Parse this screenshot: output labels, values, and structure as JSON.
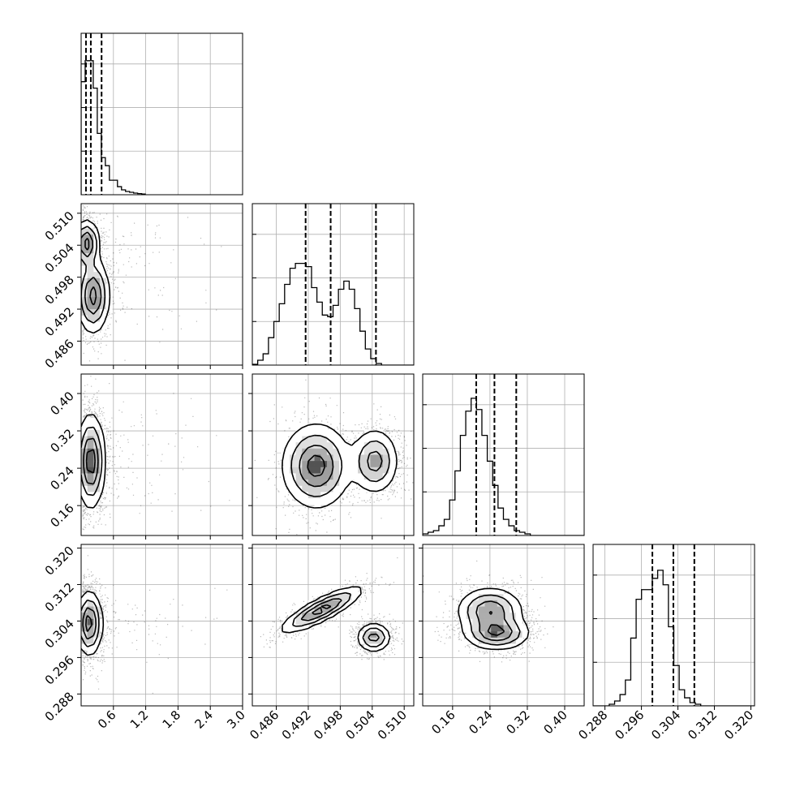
{
  "chart_data": {
    "type": "corner",
    "ndim": 4,
    "params": [
      {
        "range": [
          0.0,
          3.0
        ],
        "ticks": [
          0.6,
          1.2,
          1.8,
          2.4,
          3.0
        ],
        "tick_labels": [
          "0.6",
          "1.2",
          "1.8",
          "2.4",
          "3.0"
        ],
        "quantiles": [
          0.09,
          0.18,
          0.38
        ]
      },
      {
        "range": [
          0.4815,
          0.5118
        ],
        "ticks": [
          0.486,
          0.492,
          0.498,
          0.504,
          0.51
        ],
        "tick_labels": [
          "0.486",
          "0.492",
          "0.498",
          "0.504",
          "0.510"
        ],
        "quantiles": [
          0.4915,
          0.4962,
          0.5047
        ]
      },
      {
        "range": [
          0.096,
          0.4417
        ],
        "ticks": [
          0.16,
          0.24,
          0.32,
          0.4
        ],
        "tick_labels": [
          "0.16",
          "0.24",
          "0.32",
          "0.40"
        ],
        "quantiles": [
          0.2106,
          0.2496,
          0.2963
        ]
      },
      {
        "range": [
          0.2854,
          0.3208
        ],
        "ticks": [
          0.288,
          0.296,
          0.304,
          0.312,
          0.32
        ],
        "tick_labels": [
          "0.288",
          "0.296",
          "0.304",
          "0.312",
          "0.320"
        ],
        "quantiles": [
          0.2984,
          0.303,
          0.3076
        ]
      }
    ],
    "histograms": [
      {
        "edges_start": 0.0,
        "bin_width": 0.075,
        "counts": [
          0.7,
          0.83,
          0.83,
          0.66,
          0.38,
          0.23,
          0.18,
          0.09,
          0.09,
          0.05,
          0.03,
          0.02,
          0.015,
          0.01,
          0.007,
          0.004
        ]
      },
      {
        "edges_start": 0.4815,
        "bin_width": 0.00101,
        "counts": [
          0.005,
          0.03,
          0.07,
          0.17,
          0.27,
          0.38,
          0.5,
          0.6,
          0.63,
          0.63,
          0.61,
          0.48,
          0.39,
          0.31,
          0.3,
          0.37,
          0.47,
          0.52,
          0.47,
          0.35,
          0.21,
          0.1,
          0.04,
          0.01,
          0.0,
          0.0,
          0.0,
          0.0,
          0.0,
          0.0
        ]
      },
      {
        "edges_start": 0.096,
        "bin_width": 0.01152,
        "counts": [
          0.01,
          0.02,
          0.03,
          0.06,
          0.1,
          0.22,
          0.4,
          0.62,
          0.77,
          0.85,
          0.78,
          0.62,
          0.46,
          0.31,
          0.17,
          0.1,
          0.06,
          0.03,
          0.02,
          0.01,
          0.0,
          0.0,
          0.0,
          0.0,
          0.0,
          0.0,
          0.0,
          0.0,
          0.0,
          0.0
        ]
      },
      {
        "edges_start": 0.2854,
        "bin_width": 0.00118,
        "counts": [
          0.0,
          0.0,
          0.0,
          0.01,
          0.03,
          0.07,
          0.16,
          0.42,
          0.66,
          0.72,
          0.72,
          0.79,
          0.84,
          0.75,
          0.49,
          0.25,
          0.1,
          0.05,
          0.02,
          0.01,
          0.0,
          0.0,
          0.0,
          0.0,
          0.0,
          0.0,
          0.0,
          0.0,
          0.0,
          0.0
        ]
      }
    ],
    "pair_modes": {
      "1-0": [
        {
          "cx": 0.1,
          "cy": 0.5043,
          "sx": 0.12,
          "sy": 0.0022,
          "w": 1.0
        },
        {
          "cx": 0.22,
          "cy": 0.4945,
          "sx": 0.15,
          "sy": 0.0035,
          "w": 1.0
        }
      ],
      "2-0": [
        {
          "cx": 0.18,
          "cy": 0.255,
          "sx": 0.13,
          "sy": 0.05,
          "w": 1.0
        }
      ],
      "2-1": [
        {
          "cx": 0.4935,
          "cy": 0.245,
          "sx": 0.0032,
          "sy": 0.045,
          "w": 1.0
        },
        {
          "cx": 0.5045,
          "cy": 0.255,
          "sx": 0.0022,
          "sy": 0.035,
          "w": 0.75
        }
      ],
      "3-0": [
        {
          "cx": 0.15,
          "cy": 0.3035,
          "sx": 0.12,
          "sy": 0.0035,
          "w": 1.0
        }
      ],
      "3-1": [
        {
          "cx": 0.4945,
          "cy": 0.3065,
          "sx": 0.0038,
          "sy": 0.0025,
          "w": 1.0,
          "rho": 0.85
        },
        {
          "cx": 0.5043,
          "cy": 0.3004,
          "sx": 0.0016,
          "sy": 0.0016,
          "w": 0.75
        }
      ],
      "3-2": [
        {
          "cx": 0.24,
          "cy": 0.3063,
          "sx": 0.035,
          "sy": 0.0025,
          "w": 1.0
        },
        {
          "cx": 0.255,
          "cy": 0.3013,
          "sx": 0.035,
          "sy": 0.0018,
          "w": 1.0
        }
      ]
    },
    "grid": true
  }
}
